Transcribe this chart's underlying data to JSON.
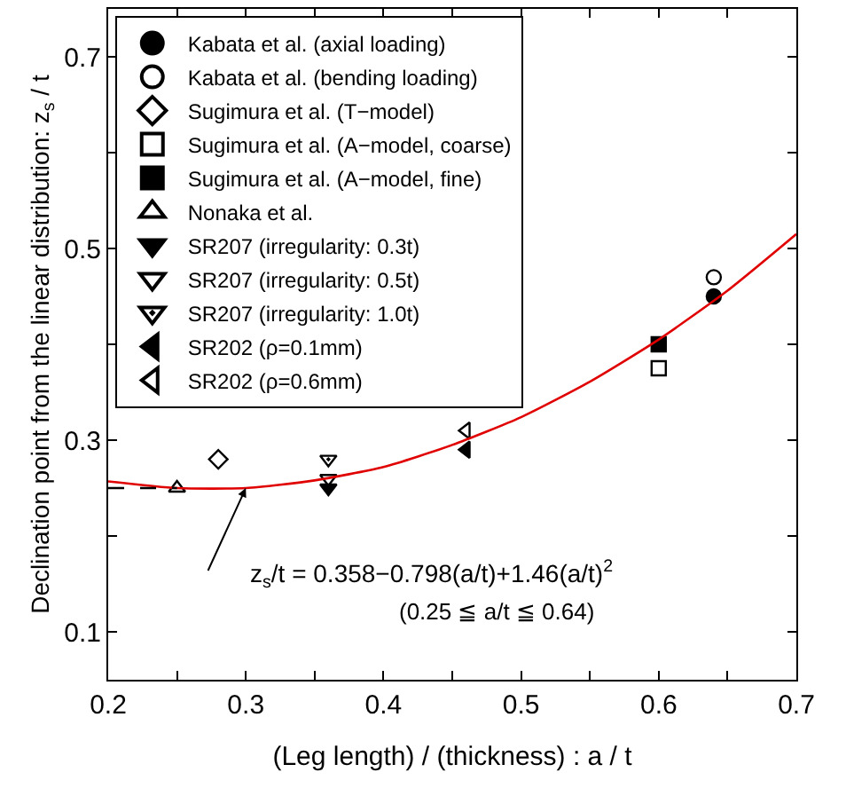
{
  "chart_data": {
    "type": "scatter",
    "xlabel": "(Leg length) / (thickness) : a / t",
    "ylabel": "Declination point from the linear distribution: z$_{s}$ / t",
    "xlim": [
      0.2,
      0.7
    ],
    "xticks": [
      0.2,
      {
        "value": 0.25,
        "label": null
      },
      0.3,
      {
        "value": 0.35,
        "label": null
      },
      0.4,
      {
        "value": 0.45,
        "label": null
      },
      0.5,
      {
        "value": 0.55,
        "label": null
      },
      0.6,
      {
        "value": 0.65,
        "label": null
      },
      0.7
    ],
    "ylim": [
      0.05,
      0.75
    ],
    "yticks": [
      0.1,
      {
        "value": 0.2,
        "label": null
      },
      0.3,
      {
        "value": 0.4,
        "label": null
      },
      0.5,
      {
        "value": 0.6,
        "label": null
      },
      0.7
    ],
    "legend": "top left",
    "series": [
      {
        "name": "Kabata et al. (axial loading)",
        "color": "#000000",
        "marker": "circle",
        "x": [
          0.64
        ],
        "values": [
          0.45
        ]
      },
      {
        "name": "Kabata et al. (bending loading)",
        "color": "#000000",
        "marker": "circle-open",
        "x": [
          0.64
        ],
        "values": [
          0.47
        ]
      },
      {
        "name": "Sugimura et al. (T−model)",
        "color": "#000000",
        "marker": "diamond-open",
        "x": [
          0.28
        ],
        "values": [
          0.28
        ]
      },
      {
        "name": "Sugimura et al. (A−model, coarse)",
        "color": "#000000",
        "marker": "square-open",
        "x": [
          0.6
        ],
        "values": [
          0.375
        ]
      },
      {
        "name": "Sugimura et al. (A−model, fine)",
        "color": "#000000",
        "marker": "square",
        "x": [
          0.6
        ],
        "values": [
          0.4
        ]
      },
      {
        "name": "Nonaka et al.",
        "color": "#000000",
        "marker": "triangle-up-open",
        "x": [
          0.25
        ],
        "values": [
          0.25
        ]
      },
      {
        "name": "SR207 (irregularity: 0.3t)",
        "color": "#000000",
        "marker": "triangle-down",
        "x": [
          0.36
        ],
        "values": [
          0.25
        ]
      },
      {
        "name": "SR207 (irregularity: 0.5t)",
        "color": "#000000",
        "marker": "triangle-down-open",
        "x": [
          0.36
        ],
        "values": [
          0.26
        ]
      },
      {
        "name": "SR207 (irregularity: 1.0t)",
        "color": "#000000",
        "marker": "triangle-down-open-dot",
        "x": [
          0.36
        ],
        "values": [
          0.28
        ]
      },
      {
        "name": "SR202 (ρ=0.1mm)",
        "color": "#000000",
        "marker": "triangle-left",
        "x": [
          0.46
        ],
        "values": [
          0.29
        ]
      },
      {
        "name": "SR202 (ρ=0.6mm)",
        "color": "#000000",
        "marker": "triangle-left-open",
        "x": [
          0.46
        ],
        "values": [
          0.31
        ]
      },
      {
        "type": "line",
        "color": "#e00000",
        "line_style": "solid",
        "x": [
          0.2,
          0.25,
          0.3,
          0.35,
          0.4,
          0.45,
          0.5,
          0.55,
          0.6,
          0.65,
          0.7
        ],
        "values": [
          0.257,
          0.25,
          0.25,
          0.258,
          0.272,
          0.295,
          0.324,
          0.361,
          0.405,
          0.456,
          0.515
        ]
      },
      {
        "type": "line",
        "color": "#000000",
        "line_style": "dashed",
        "x": [
          0.2,
          0.25
        ],
        "values": [
          0.25,
          0.25
        ]
      }
    ],
    "annotations": [
      {
        "text": "z$_{s}$/t = 0.358−0.798(a/t)+1.46(a/t)$^{2}$",
        "x": 0.3,
        "y": 0.25
      },
      "(0.25 ≦ a/t ≦ 0.64)"
    ]
  }
}
